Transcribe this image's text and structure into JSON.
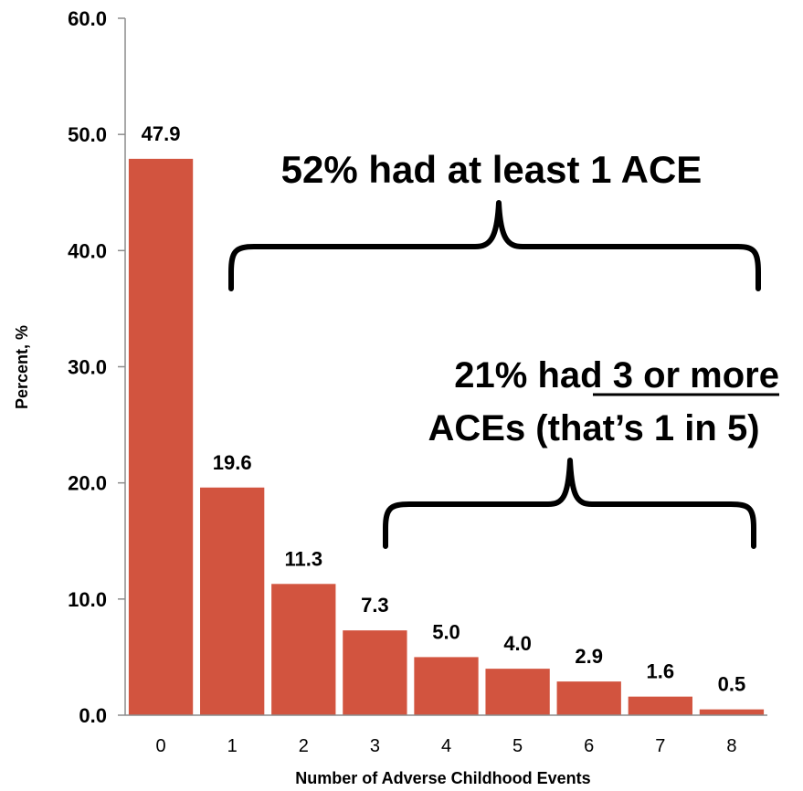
{
  "chart_data": {
    "type": "bar",
    "categories": [
      "0",
      "1",
      "2",
      "3",
      "4",
      "5",
      "6",
      "7",
      "8"
    ],
    "values": [
      47.9,
      19.6,
      11.3,
      7.3,
      5.0,
      4.0,
      2.9,
      1.6,
      0.5
    ],
    "data_labels": [
      "47.9",
      "19.6",
      "11.3",
      "7.3",
      "5.0",
      "4.0",
      "2.9",
      "1.6",
      "0.5"
    ],
    "y_ticks": [
      0,
      10,
      20,
      30,
      40,
      50,
      60
    ],
    "y_tick_labels": [
      "0.0",
      "10.0",
      "20.0",
      "30.0",
      "40.0",
      "50.0",
      "60.0"
    ],
    "ylim": [
      0,
      60
    ],
    "xlabel": "Number of Adverse Childhood Events",
    "ylabel": "Percent, %",
    "bar_color": "#d2543f",
    "grid": false,
    "legend": "none",
    "annotations": {
      "at_least_one": "52% had at least 1 ACE",
      "three_or_more_line1_prefix": "21% had ",
      "three_or_more_line1_underlined": "3 or more",
      "three_or_more_line2": "ACEs (that’s 1 in 5)"
    }
  }
}
